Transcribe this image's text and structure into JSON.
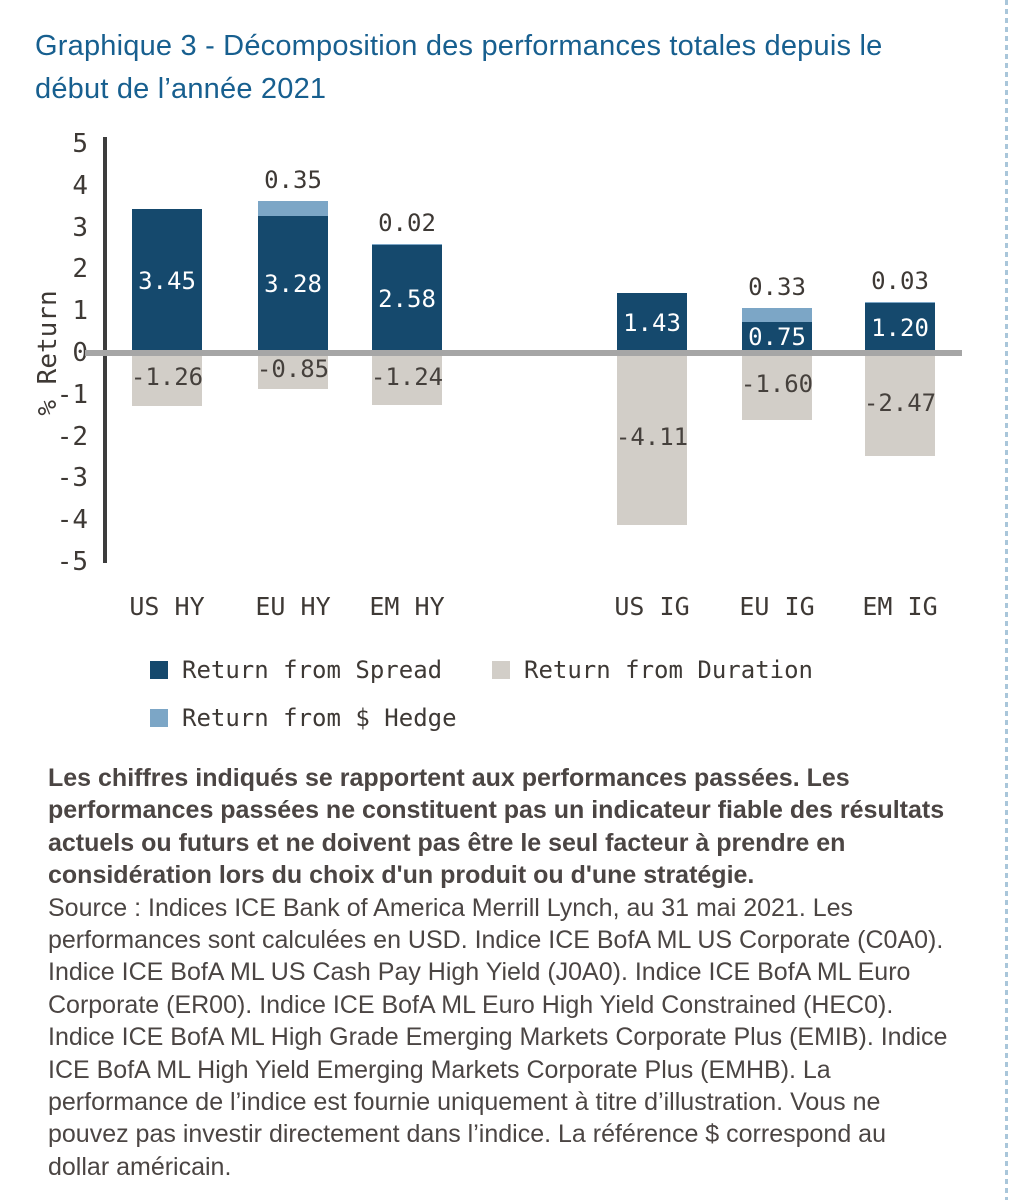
{
  "page": {
    "heading": "Graphique 3 - Décomposition des performances totales depuis le début de l’année 2021"
  },
  "chart_data": {
    "type": "bar",
    "stacked": true,
    "title": "Graphique 3 - Décomposition des performances totales depuis le début de l’année 2021",
    "ylabel": "% Return",
    "xlabel": "",
    "ylim": [
      -5,
      5
    ],
    "yticks": [
      5,
      4,
      3,
      2,
      1,
      0,
      -1,
      -2,
      -3,
      -4,
      -5
    ],
    "grid": false,
    "legend_position": "bottom",
    "categories": [
      "US HY",
      "EU HY",
      "EM HY",
      "US IG",
      "EU IG",
      "EM IG"
    ],
    "series": [
      {
        "name": "Return from Spread",
        "color": "#15496d",
        "values": [
          3.45,
          3.28,
          2.58,
          1.43,
          0.75,
          1.2
        ]
      },
      {
        "name": "Return from Duration",
        "color": "#d2cec8",
        "values": [
          -1.26,
          -0.85,
          -1.24,
          -4.11,
          -1.6,
          -2.47
        ]
      },
      {
        "name": "Return from $ Hedge",
        "color": "#7ca6c6",
        "values": [
          null,
          0.35,
          0.02,
          null,
          0.33,
          0.03
        ]
      }
    ],
    "colors": {
      "axis": "#3d3d3d",
      "zero_line": "#a6a6a6",
      "tick_text": "#3e3935",
      "title_text": "#175f8f"
    }
  },
  "footnote": {
    "bold": "Les chiffres indiqués se rapportent aux performances passées. Les performances passées ne constituent pas un indicateur fiable des résultats actuels ou futurs et ne doivent pas être le seul facteur à prendre en considération lors du choix d'un produit ou d'une stratégie.",
    "source": "Source : Indices ICE Bank of America Merrill Lynch, au 31 mai 2021. Les performances sont calculées en USD. Indice ICE BofA ML US Corporate (C0A0). Indice ICE BofA ML US Cash Pay High Yield (J0A0). Indice ICE BofA ML Euro Corporate (ER00). Indice ICE BofA ML Euro High Yield Constrained (HEC0). Indice ICE BofA ML High Grade Emerging Markets Corporate Plus (EMIB). Indice ICE BofA ML High Yield Emerging Markets Corporate Plus (EMHB). La performance de l’indice est fournie uniquement à titre d’illustration. Vous ne pouvez pas investir directement dans l’indice. La référence $ correspond au dollar américain."
  }
}
